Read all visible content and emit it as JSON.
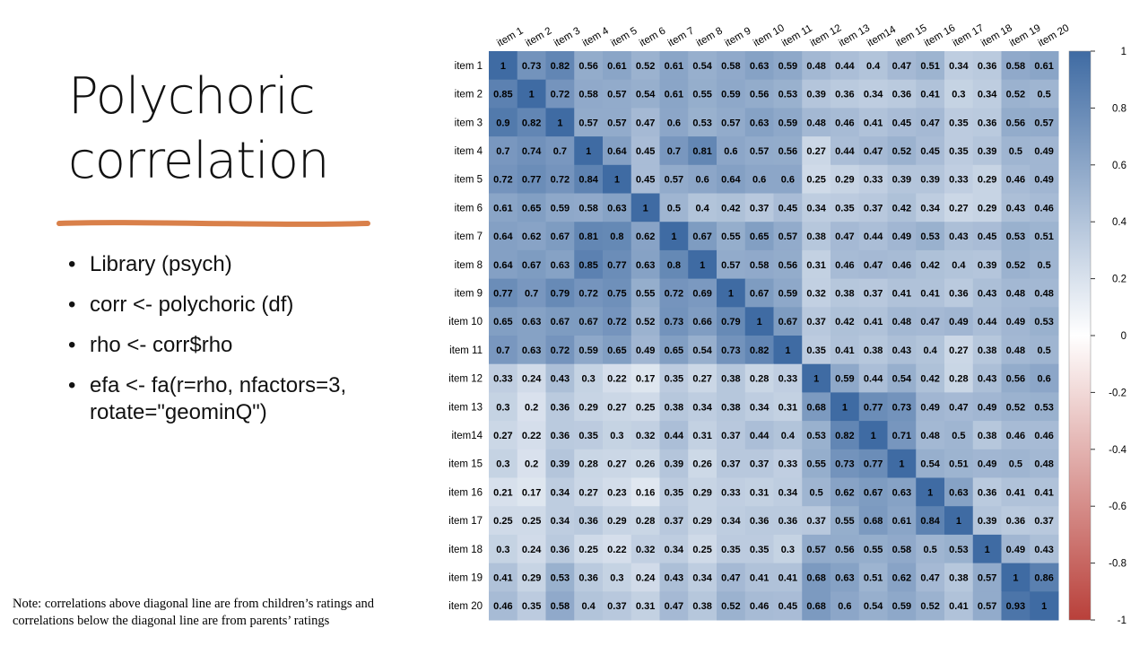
{
  "slide": {
    "title": "Polychoric correlation",
    "bullets": [
      "Library (psych)",
      "corr <- polychoric (df)",
      "rho <- corr$rho",
      "efa <- fa(r=rho, nfactors=3, rotate=\"geominQ\")"
    ],
    "note": "Note: correlations above diagonal line are from children’s ratings and correlations below the diagonal line are from parents’ ratings"
  },
  "chart_data": {
    "type": "heatmap",
    "x": [
      "item 1",
      "item 2",
      "item 3",
      "item 4",
      "item 5",
      "item 6",
      "item 7",
      "item 8",
      "item 9",
      "item 10",
      "item 11",
      "item 12",
      "item 13",
      "item14",
      "item 15",
      "item 16",
      "item 17",
      "item 18",
      "item 19",
      "item 20"
    ],
    "y": [
      "item 1",
      "item 2",
      "item 3",
      "item 4",
      "item 5",
      "item 6",
      "item 7",
      "item 8",
      "item 9",
      "item 10",
      "item 11",
      "item 12",
      "item 13",
      "item14",
      "item 15",
      "item 16",
      "item 17",
      "item 18",
      "item 19",
      "item 20"
    ],
    "values": [
      [
        1,
        0.73,
        0.82,
        0.56,
        0.61,
        0.52,
        0.61,
        0.54,
        0.58,
        0.63,
        0.59,
        0.48,
        0.44,
        0.4,
        0.47,
        0.51,
        0.34,
        0.36,
        0.58,
        0.61
      ],
      [
        0.85,
        1,
        0.72,
        0.58,
        0.57,
        0.54,
        0.61,
        0.55,
        0.59,
        0.56,
        0.53,
        0.39,
        0.36,
        0.34,
        0.36,
        0.41,
        0.3,
        0.34,
        0.52,
        0.5
      ],
      [
        0.9,
        0.82,
        1,
        0.57,
        0.57,
        0.47,
        0.6,
        0.53,
        0.57,
        0.63,
        0.59,
        0.48,
        0.46,
        0.41,
        0.45,
        0.47,
        0.35,
        0.36,
        0.56,
        0.57
      ],
      [
        0.7,
        0.74,
        0.7,
        1,
        0.64,
        0.45,
        0.7,
        0.81,
        0.6,
        0.57,
        0.56,
        0.27,
        0.44,
        0.47,
        0.52,
        0.45,
        0.35,
        0.39,
        0.5,
        0.49
      ],
      [
        0.72,
        0.77,
        0.72,
        0.84,
        1,
        0.45,
        0.57,
        0.6,
        0.64,
        0.6,
        0.6,
        0.25,
        0.29,
        0.33,
        0.39,
        0.39,
        0.33,
        0.29,
        0.46,
        0.49
      ],
      [
        0.61,
        0.65,
        0.59,
        0.58,
        0.63,
        1,
        0.5,
        0.4,
        0.42,
        0.37,
        0.45,
        0.34,
        0.35,
        0.37,
        0.42,
        0.34,
        0.27,
        0.29,
        0.43,
        0.46
      ],
      [
        0.64,
        0.62,
        0.67,
        0.81,
        0.8,
        0.62,
        1,
        0.67,
        0.55,
        0.65,
        0.57,
        0.38,
        0.47,
        0.44,
        0.49,
        0.53,
        0.43,
        0.45,
        0.53,
        0.51
      ],
      [
        0.64,
        0.67,
        0.63,
        0.85,
        0.77,
        0.63,
        0.8,
        1,
        0.57,
        0.58,
        0.56,
        0.31,
        0.46,
        0.47,
        0.46,
        0.42,
        0.4,
        0.39,
        0.52,
        0.5
      ],
      [
        0.77,
        0.7,
        0.79,
        0.72,
        0.75,
        0.55,
        0.72,
        0.69,
        1,
        0.67,
        0.59,
        0.32,
        0.38,
        0.37,
        0.41,
        0.41,
        0.36,
        0.43,
        0.48,
        0.48
      ],
      [
        0.65,
        0.63,
        0.67,
        0.67,
        0.72,
        0.52,
        0.73,
        0.66,
        0.79,
        1,
        0.67,
        0.37,
        0.42,
        0.41,
        0.48,
        0.47,
        0.49,
        0.44,
        0.49,
        0.53
      ],
      [
        0.7,
        0.63,
        0.72,
        0.59,
        0.65,
        0.49,
        0.65,
        0.54,
        0.73,
        0.82,
        1,
        0.35,
        0.41,
        0.38,
        0.43,
        0.4,
        0.27,
        0.38,
        0.48,
        0.5
      ],
      [
        0.33,
        0.24,
        0.43,
        0.3,
        0.22,
        0.17,
        0.35,
        0.27,
        0.38,
        0.28,
        0.33,
        1,
        0.59,
        0.44,
        0.54,
        0.42,
        0.28,
        0.43,
        0.56,
        0.6
      ],
      [
        0.3,
        0.2,
        0.36,
        0.29,
        0.27,
        0.25,
        0.38,
        0.34,
        0.38,
        0.34,
        0.31,
        0.68,
        1,
        0.77,
        0.73,
        0.49,
        0.47,
        0.49,
        0.52,
        0.53
      ],
      [
        0.27,
        0.22,
        0.36,
        0.35,
        0.3,
        0.32,
        0.44,
        0.31,
        0.37,
        0.44,
        0.4,
        0.53,
        0.82,
        1,
        0.71,
        0.48,
        0.5,
        0.38,
        0.46,
        0.46
      ],
      [
        0.3,
        0.2,
        0.39,
        0.28,
        0.27,
        0.26,
        0.39,
        0.26,
        0.37,
        0.37,
        0.33,
        0.55,
        0.73,
        0.77,
        1,
        0.54,
        0.51,
        0.49,
        0.5,
        0.48
      ],
      [
        0.21,
        0.17,
        0.34,
        0.27,
        0.23,
        0.16,
        0.35,
        0.29,
        0.33,
        0.31,
        0.34,
        0.5,
        0.62,
        0.67,
        0.63,
        1,
        0.63,
        0.36,
        0.41,
        0.41
      ],
      [
        0.25,
        0.25,
        0.34,
        0.36,
        0.29,
        0.28,
        0.37,
        0.29,
        0.34,
        0.36,
        0.36,
        0.37,
        0.55,
        0.68,
        0.61,
        0.84,
        1,
        0.39,
        0.36,
        0.37
      ],
      [
        0.3,
        0.24,
        0.36,
        0.25,
        0.22,
        0.32,
        0.34,
        0.25,
        0.35,
        0.35,
        0.3,
        0.57,
        0.56,
        0.55,
        0.58,
        0.5,
        0.53,
        1,
        0.49,
        0.43
      ],
      [
        0.41,
        0.29,
        0.53,
        0.36,
        0.3,
        0.24,
        0.43,
        0.34,
        0.47,
        0.41,
        0.41,
        0.68,
        0.63,
        0.51,
        0.62,
        0.47,
        0.38,
        0.57,
        1,
        0.86
      ],
      [
        0.46,
        0.35,
        0.58,
        0.4,
        0.37,
        0.31,
        0.47,
        0.38,
        0.52,
        0.46,
        0.45,
        0.68,
        0.6,
        0.54,
        0.59,
        0.52,
        0.41,
        0.57,
        0.93,
        1
      ]
    ],
    "zlim": [
      -1,
      1
    ],
    "zticks": [
      -1,
      -0.8,
      -0.6,
      -0.4,
      -0.2,
      0,
      0.2,
      0.4,
      0.6,
      0.8,
      1
    ],
    "colormap": [
      "#b9403a",
      "#ffffff",
      "#3f6ba3"
    ]
  }
}
